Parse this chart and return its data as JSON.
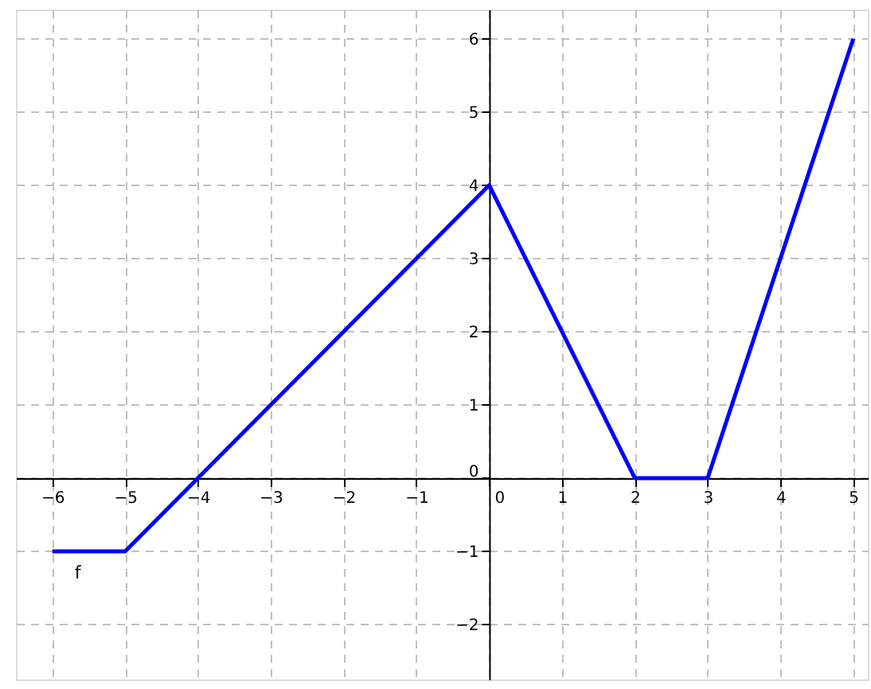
{
  "chart_data": {
    "type": "line",
    "x": [
      -6,
      -5,
      0,
      2,
      3,
      5
    ],
    "series": [
      {
        "name": "f",
        "color": "#0000ff",
        "values": [
          -1,
          -1,
          4,
          0,
          0,
          6
        ]
      }
    ],
    "xlim": [
      -6.5,
      5.2
    ],
    "ylim": [
      -2.75,
      6.4
    ],
    "xticks": [
      -6,
      -5,
      -4,
      -3,
      -2,
      -1,
      0,
      1,
      2,
      3,
      4,
      5
    ],
    "yticks": [
      -2,
      -1,
      0,
      1,
      2,
      3,
      4,
      5,
      6
    ],
    "grid": true,
    "marker": "none",
    "line_style": "solid"
  }
}
